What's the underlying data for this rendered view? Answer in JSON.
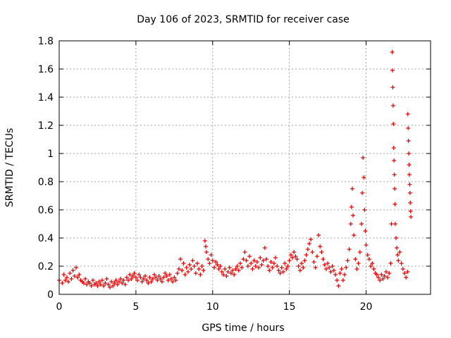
{
  "chart_data": {
    "type": "scatter",
    "title": "Day 106 of 2023, SRMTID for receiver case",
    "xlabel": "GPS time / hours",
    "ylabel": "SRMTID / TECUs",
    "xlim": [
      0,
      24.2
    ],
    "ylim": [
      0,
      1.8
    ],
    "xticks": [
      0,
      5,
      10,
      15,
      20
    ],
    "xtick_labels": [
      "0",
      "5",
      "10",
      "15",
      "20"
    ],
    "yticks": [
      0,
      0.2,
      0.4,
      0.6,
      0.8,
      1.0,
      1.2,
      1.4,
      1.6,
      1.8
    ],
    "ytick_labels": [
      "0",
      "0.2",
      "0.4",
      "0.6",
      "0.8",
      "1",
      "1.2",
      "1.4",
      "1.6",
      "1.8"
    ],
    "grid": true,
    "marker": "+",
    "series": [
      {
        "name": "SRMTID",
        "color": "#e00000",
        "points": [
          [
            0.0,
            0.1
          ],
          [
            0.2,
            0.08
          ],
          [
            0.3,
            0.14
          ],
          [
            0.4,
            0.1
          ],
          [
            0.5,
            0.12
          ],
          [
            0.6,
            0.09
          ],
          [
            0.7,
            0.15
          ],
          [
            0.8,
            0.11
          ],
          [
            0.9,
            0.17
          ],
          [
            1.0,
            0.13
          ],
          [
            1.1,
            0.19
          ],
          [
            1.2,
            0.12
          ],
          [
            1.3,
            0.14
          ],
          [
            1.4,
            0.1
          ],
          [
            1.5,
            0.09
          ],
          [
            1.6,
            0.08
          ],
          [
            1.7,
            0.11
          ],
          [
            1.8,
            0.07
          ],
          [
            1.9,
            0.09
          ],
          [
            2.0,
            0.08
          ],
          [
            2.1,
            0.06
          ],
          [
            2.2,
            0.1
          ],
          [
            2.3,
            0.07
          ],
          [
            2.4,
            0.08
          ],
          [
            2.5,
            0.06
          ],
          [
            2.6,
            0.09
          ],
          [
            2.7,
            0.07
          ],
          [
            2.8,
            0.1
          ],
          [
            2.9,
            0.06
          ],
          [
            3.0,
            0.08
          ],
          [
            3.1,
            0.11
          ],
          [
            3.2,
            0.07
          ],
          [
            3.3,
            0.05
          ],
          [
            3.4,
            0.09
          ],
          [
            3.5,
            0.06
          ],
          [
            3.6,
            0.08
          ],
          [
            3.7,
            0.1
          ],
          [
            3.8,
            0.07
          ],
          [
            3.9,
            0.09
          ],
          [
            4.0,
            0.11
          ],
          [
            4.1,
            0.08
          ],
          [
            4.2,
            0.1
          ],
          [
            4.3,
            0.07
          ],
          [
            4.4,
            0.12
          ],
          [
            4.5,
            0.1
          ],
          [
            4.6,
            0.14
          ],
          [
            4.7,
            0.11
          ],
          [
            4.8,
            0.13
          ],
          [
            4.9,
            0.15
          ],
          [
            5.0,
            0.12
          ],
          [
            5.1,
            0.1
          ],
          [
            5.2,
            0.14
          ],
          [
            5.3,
            0.12
          ],
          [
            5.4,
            0.09
          ],
          [
            5.5,
            0.11
          ],
          [
            5.6,
            0.13
          ],
          [
            5.7,
            0.1
          ],
          [
            5.8,
            0.08
          ],
          [
            5.9,
            0.12
          ],
          [
            6.0,
            0.09
          ],
          [
            6.1,
            0.11
          ],
          [
            6.2,
            0.14
          ],
          [
            6.3,
            0.12
          ],
          [
            6.4,
            0.1
          ],
          [
            6.5,
            0.13
          ],
          [
            6.6,
            0.11
          ],
          [
            6.7,
            0.09
          ],
          [
            6.8,
            0.12
          ],
          [
            6.9,
            0.15
          ],
          [
            7.0,
            0.13
          ],
          [
            7.1,
            0.1
          ],
          [
            7.2,
            0.14
          ],
          [
            7.3,
            0.11
          ],
          [
            7.4,
            0.09
          ],
          [
            7.5,
            0.12
          ],
          [
            7.6,
            0.1
          ],
          [
            7.7,
            0.15
          ],
          [
            7.8,
            0.18
          ],
          [
            7.9,
            0.25
          ],
          [
            8.0,
            0.17
          ],
          [
            8.1,
            0.22
          ],
          [
            8.2,
            0.14
          ],
          [
            8.3,
            0.19
          ],
          [
            8.4,
            0.16
          ],
          [
            8.5,
            0.21
          ],
          [
            8.6,
            0.18
          ],
          [
            8.7,
            0.24
          ],
          [
            8.8,
            0.2
          ],
          [
            8.9,
            0.15
          ],
          [
            9.0,
            0.22
          ],
          [
            9.1,
            0.18
          ],
          [
            9.2,
            0.14
          ],
          [
            9.3,
            0.2
          ],
          [
            9.4,
            0.17
          ],
          [
            9.5,
            0.38
          ],
          [
            9.55,
            0.34
          ],
          [
            9.6,
            0.3
          ],
          [
            9.7,
            0.25
          ],
          [
            9.8,
            0.22
          ],
          [
            9.9,
            0.28
          ],
          [
            10.0,
            0.24
          ],
          [
            10.1,
            0.19
          ],
          [
            10.2,
            0.23
          ],
          [
            10.3,
            0.21
          ],
          [
            10.4,
            0.18
          ],
          [
            10.5,
            0.2
          ],
          [
            10.6,
            0.16
          ],
          [
            10.7,
            0.14
          ],
          [
            10.8,
            0.18
          ],
          [
            10.9,
            0.13
          ],
          [
            11.0,
            0.16
          ],
          [
            11.1,
            0.19
          ],
          [
            11.2,
            0.15
          ],
          [
            11.3,
            0.17
          ],
          [
            11.4,
            0.14
          ],
          [
            11.5,
            0.18
          ],
          [
            11.6,
            0.2
          ],
          [
            11.7,
            0.17
          ],
          [
            11.8,
            0.22
          ],
          [
            11.9,
            0.19
          ],
          [
            12.0,
            0.25
          ],
          [
            12.1,
            0.3
          ],
          [
            12.2,
            0.24
          ],
          [
            12.3,
            0.2
          ],
          [
            12.4,
            0.27
          ],
          [
            12.5,
            0.22
          ],
          [
            12.6,
            0.18
          ],
          [
            12.7,
            0.24
          ],
          [
            12.8,
            0.2
          ],
          [
            12.9,
            0.23
          ],
          [
            13.0,
            0.19
          ],
          [
            13.1,
            0.26
          ],
          [
            13.2,
            0.21
          ],
          [
            13.3,
            0.24
          ],
          [
            13.4,
            0.33
          ],
          [
            13.5,
            0.25
          ],
          [
            13.6,
            0.2
          ],
          [
            13.7,
            0.17
          ],
          [
            13.8,
            0.23
          ],
          [
            13.9,
            0.19
          ],
          [
            14.0,
            0.22
          ],
          [
            14.1,
            0.26
          ],
          [
            14.2,
            0.2
          ],
          [
            14.3,
            0.17
          ],
          [
            14.4,
            0.15
          ],
          [
            14.5,
            0.19
          ],
          [
            14.6,
            0.16
          ],
          [
            14.7,
            0.22
          ],
          [
            14.8,
            0.18
          ],
          [
            14.9,
            0.2
          ],
          [
            15.0,
            0.24
          ],
          [
            15.1,
            0.28
          ],
          [
            15.2,
            0.26
          ],
          [
            15.3,
            0.3
          ],
          [
            15.4,
            0.27
          ],
          [
            15.5,
            0.25
          ],
          [
            15.6,
            0.2
          ],
          [
            15.7,
            0.17
          ],
          [
            15.8,
            0.22
          ],
          [
            15.9,
            0.19
          ],
          [
            16.0,
            0.24
          ],
          [
            16.1,
            0.28
          ],
          [
            16.2,
            0.32
          ],
          [
            16.3,
            0.36
          ],
          [
            16.4,
            0.39
          ],
          [
            16.5,
            0.3
          ],
          [
            16.6,
            0.23
          ],
          [
            16.7,
            0.19
          ],
          [
            16.8,
            0.27
          ],
          [
            16.9,
            0.42
          ],
          [
            17.0,
            0.34
          ],
          [
            17.1,
            0.3
          ],
          [
            17.2,
            0.25
          ],
          [
            17.3,
            0.21
          ],
          [
            17.4,
            0.18
          ],
          [
            17.5,
            0.22
          ],
          [
            17.6,
            0.19
          ],
          [
            17.7,
            0.16
          ],
          [
            17.8,
            0.2
          ],
          [
            17.9,
            0.17
          ],
          [
            18.0,
            0.14
          ],
          [
            18.1,
            0.1
          ],
          [
            18.2,
            0.06
          ],
          [
            18.3,
            0.15
          ],
          [
            18.4,
            0.18
          ],
          [
            18.5,
            0.1
          ],
          [
            18.6,
            0.14
          ],
          [
            18.7,
            0.19
          ],
          [
            18.8,
            0.24
          ],
          [
            18.9,
            0.32
          ],
          [
            19.0,
            0.5
          ],
          [
            19.05,
            0.62
          ],
          [
            19.1,
            0.75
          ],
          [
            19.15,
            0.56
          ],
          [
            19.2,
            0.42
          ],
          [
            19.3,
            0.25
          ],
          [
            19.4,
            0.18
          ],
          [
            19.5,
            0.22
          ],
          [
            19.6,
            0.3
          ],
          [
            19.7,
            0.5
          ],
          [
            19.75,
            0.72
          ],
          [
            19.8,
            0.97
          ],
          [
            19.85,
            0.83
          ],
          [
            19.9,
            0.6
          ],
          [
            19.95,
            0.45
          ],
          [
            20.0,
            0.35
          ],
          [
            20.1,
            0.28
          ],
          [
            20.2,
            0.25
          ],
          [
            20.3,
            0.2
          ],
          [
            20.4,
            0.22
          ],
          [
            20.5,
            0.18
          ],
          [
            20.6,
            0.15
          ],
          [
            20.7,
            0.14
          ],
          [
            20.8,
            0.12
          ],
          [
            20.9,
            0.1
          ],
          [
            21.0,
            0.14
          ],
          [
            21.1,
            0.11
          ],
          [
            21.2,
            0.13
          ],
          [
            21.3,
            0.16
          ],
          [
            21.4,
            0.12
          ],
          [
            21.5,
            0.15
          ],
          [
            21.6,
            0.22
          ],
          [
            21.65,
            0.5
          ],
          [
            21.7,
            1.72
          ],
          [
            21.72,
            1.59
          ],
          [
            21.74,
            1.47
          ],
          [
            21.76,
            1.34
          ],
          [
            21.78,
            1.21
          ],
          [
            21.8,
            1.04
          ],
          [
            21.82,
            0.95
          ],
          [
            21.84,
            0.85
          ],
          [
            21.86,
            0.75
          ],
          [
            21.88,
            0.64
          ],
          [
            21.9,
            0.5
          ],
          [
            21.95,
            0.4
          ],
          [
            22.0,
            0.33
          ],
          [
            22.05,
            0.28
          ],
          [
            22.1,
            0.24
          ],
          [
            22.2,
            0.3
          ],
          [
            22.3,
            0.22
          ],
          [
            22.4,
            0.18
          ],
          [
            22.5,
            0.15
          ],
          [
            22.6,
            0.12
          ],
          [
            22.7,
            0.16
          ],
          [
            22.72,
            1.28
          ],
          [
            22.74,
            1.18
          ],
          [
            22.76,
            1.09
          ],
          [
            22.78,
            1.0
          ],
          [
            22.8,
            0.92
          ],
          [
            22.82,
            0.85
          ],
          [
            22.84,
            0.78
          ],
          [
            22.86,
            0.72
          ],
          [
            22.88,
            0.65
          ],
          [
            22.9,
            0.59
          ],
          [
            22.92,
            0.55
          ]
        ]
      }
    ]
  }
}
